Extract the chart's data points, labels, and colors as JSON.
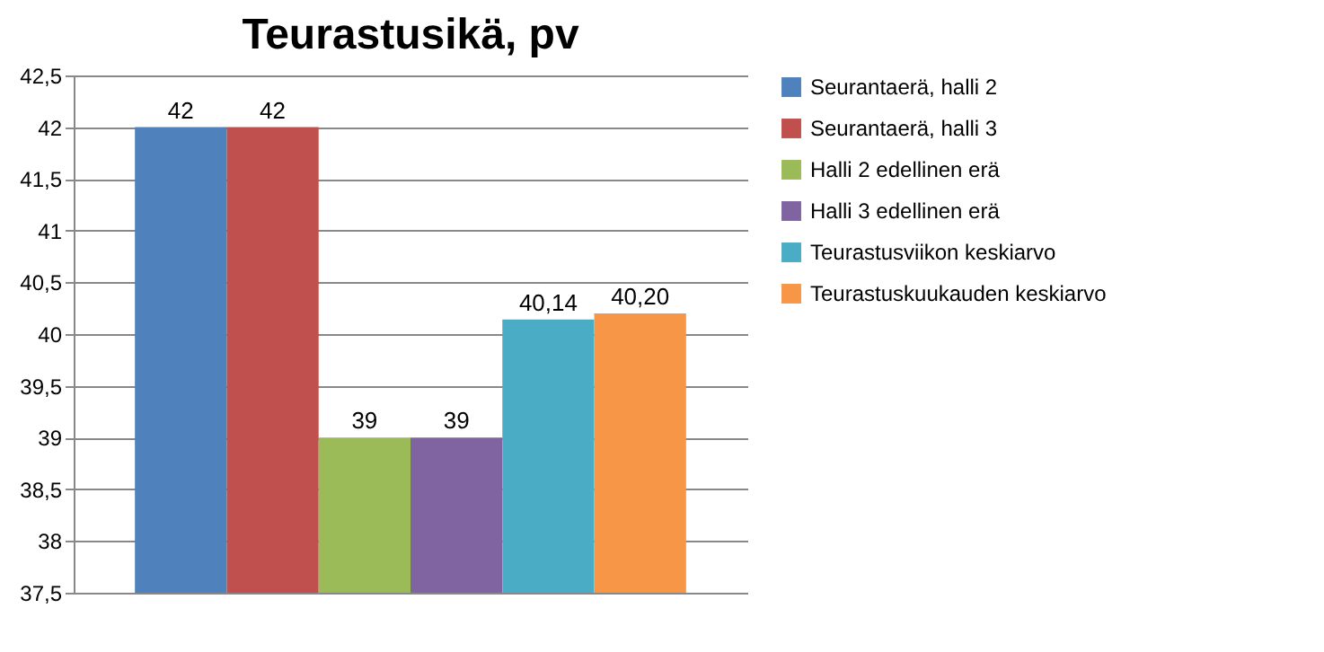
{
  "chart_data": {
    "type": "bar",
    "title": "Teurastusikä, pv",
    "categories": [
      null
    ],
    "series": [
      {
        "name": "Seurantaerä, halli 2",
        "color": "#4f81bd",
        "values": [
          42
        ],
        "value_labels": [
          "42"
        ]
      },
      {
        "name": "Seurantaerä, halli 3",
        "color": "#c0504d",
        "values": [
          42
        ],
        "value_labels": [
          "42"
        ]
      },
      {
        "name": "Halli 2 edellinen erä",
        "color": "#9bbb59",
        "values": [
          39
        ],
        "value_labels": [
          "39"
        ]
      },
      {
        "name": "Halli 3 edellinen erä",
        "color": "#8064a2",
        "values": [
          39
        ],
        "value_labels": [
          "39"
        ]
      },
      {
        "name": "Teurastusviikon keskiarvo",
        "color": "#4bacc6",
        "values": [
          40.14
        ],
        "value_labels": [
          "40,14"
        ]
      },
      {
        "name": "Teurastuskuukauden keskiarvo",
        "color": "#f79646",
        "values": [
          40.2
        ],
        "value_labels": [
          "40,20"
        ]
      }
    ],
    "ylim": [
      37.5,
      42.5
    ],
    "yticks": [
      {
        "value": 37.5,
        "label": "37,5"
      },
      38,
      {
        "value": 38.5,
        "label": "38,5"
      },
      39,
      {
        "value": 39.5,
        "label": "39,5"
      },
      40,
      {
        "value": 40.5,
        "label": "40,5"
      },
      41,
      {
        "value": 41.5,
        "label": "41,5"
      },
      42,
      {
        "value": 42.5,
        "label": "42,5"
      }
    ],
    "grid": "y",
    "legend": "right"
  }
}
